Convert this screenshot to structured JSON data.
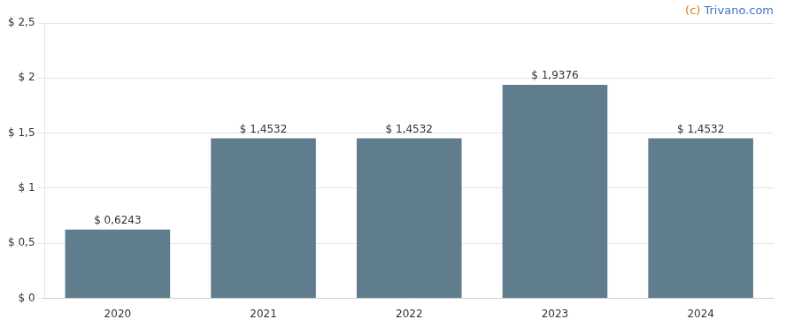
{
  "chart_data": {
    "type": "bar",
    "categories": [
      "2020",
      "2021",
      "2022",
      "2023",
      "2024"
    ],
    "values": [
      0.6243,
      1.4532,
      1.4532,
      1.9376,
      1.4532
    ],
    "value_labels": [
      "$ 0,6243",
      "$ 1,4532",
      "$ 1,4532",
      "$ 1,9376",
      "$ 1,4532"
    ],
    "data_labels": true,
    "color": "#5f7d8c",
    "ylim": [
      0,
      2.5
    ],
    "yticks": [
      {
        "value": 0,
        "label": "$ 0"
      },
      {
        "value": 0.5,
        "label": "$ 0,5"
      },
      {
        "value": 1.0,
        "label": "$ 1"
      },
      {
        "value": 1.5,
        "label": "$ 1,5"
      },
      {
        "value": 2.0,
        "label": "$ 2"
      },
      {
        "value": 2.5,
        "label": "$ 2,5"
      }
    ],
    "grid": true,
    "annotations": [
      {
        "text": "(c)",
        "color": "#e07820"
      },
      {
        "text": " Trivano.com",
        "color": "#4472c0"
      }
    ]
  }
}
